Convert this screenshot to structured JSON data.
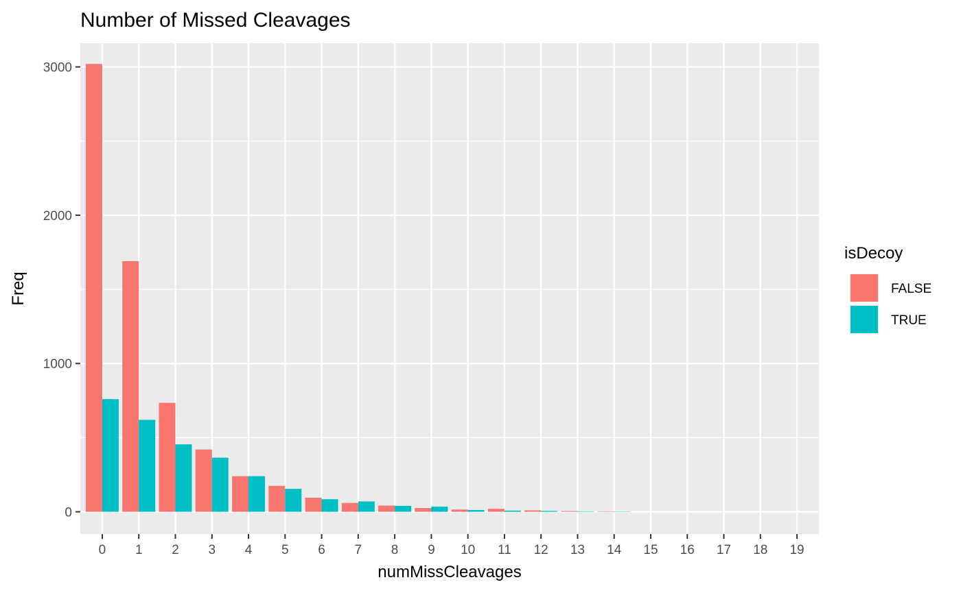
{
  "chart_data": {
    "type": "bar",
    "title": "Number of Missed Cleavages",
    "xlabel": "numMissCleavages",
    "ylabel": "Freq",
    "ylim": [
      -150,
      3160
    ],
    "yticks": [
      0,
      1000,
      2000,
      3000
    ],
    "yticklabels": [
      "0",
      "1000",
      "2000",
      "3000"
    ],
    "categories": [
      "0",
      "1",
      "2",
      "3",
      "4",
      "5",
      "6",
      "7",
      "8",
      "9",
      "10",
      "11",
      "12",
      "13",
      "14",
      "15",
      "16",
      "17",
      "18",
      "19"
    ],
    "grid": true,
    "legend": {
      "title": "isDecoy",
      "position": "right"
    },
    "series": [
      {
        "name": "FALSE",
        "color": "#F8766D",
        "values": [
          3020,
          1690,
          735,
          420,
          240,
          175,
          95,
          60,
          42,
          25,
          15,
          20,
          10,
          5,
          3,
          0,
          0,
          0,
          0,
          0
        ]
      },
      {
        "name": "TRUE",
        "color": "#00BFC4",
        "values": [
          760,
          620,
          455,
          365,
          240,
          155,
          85,
          70,
          40,
          35,
          12,
          8,
          6,
          3,
          2,
          0,
          0,
          0,
          0,
          0
        ]
      }
    ]
  }
}
